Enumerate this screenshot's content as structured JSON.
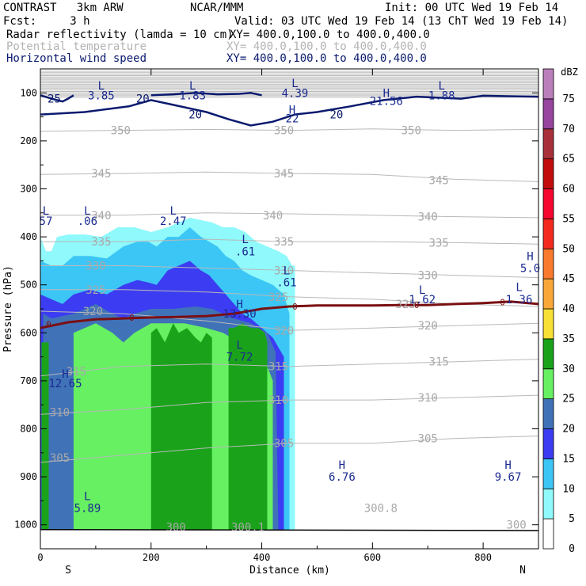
{
  "header": {
    "model": "CONTRAST   3km ARW",
    "org": "NCAR/MMM",
    "init": "Init: 00 UTC Wed 19 Feb 14",
    "fcst": "Fcst:     3 h",
    "valid": "Valid: 03 UTC Wed 19 Feb 14 (13 ChT Wed 19 Feb 14)"
  },
  "legend_lines": [
    {
      "label": "Radar reflectivity (lamda = 10 cm)",
      "xy": "XY= 400.0,100.0 to 400.0,400.0",
      "color": "#000000"
    },
    {
      "label": "Potential temperature",
      "xy": "XY= 400.0,100.0 to 400.0,400.0",
      "color": "#b4b4b4"
    },
    {
      "label": "Horizontal wind speed",
      "xy": "XY= 400.0,100.0 to 400.0,400.0",
      "color": "#0a1a6e"
    }
  ],
  "chart_data": {
    "type": "cross-section",
    "xlabel": "Distance (km)",
    "ylabel": "Pressure (hPa)",
    "xlim": [
      0,
      900
    ],
    "ylim": [
      1050,
      50
    ],
    "x_ticks": [
      0,
      200,
      400,
      600,
      800
    ],
    "y_ticks": [
      100,
      200,
      300,
      400,
      500,
      600,
      700,
      800,
      900,
      1000
    ],
    "end_labels": {
      "left": "S",
      "right": "N"
    },
    "colorbar": {
      "unit": "dBZ",
      "levels": [
        0,
        5,
        10,
        15,
        20,
        25,
        30,
        35,
        40,
        45,
        50,
        55,
        60,
        65,
        70,
        75
      ],
      "colors": [
        "#ffffff",
        "#8ff9fb",
        "#3cc6f6",
        "#3c3cf2",
        "#4072b8",
        "#66f062",
        "#1aa31a",
        "#f8e134",
        "#f9a838",
        "#f97a2c",
        "#f52a1f",
        "#f5062e",
        "#c20c0c",
        "#a8303a",
        "#96449e",
        "#bb80bc"
      ]
    },
    "reflectivity": [
      {
        "level": 5,
        "xs": [
          0,
          10,
          20,
          30,
          50,
          80,
          110,
          140,
          170,
          200,
          230,
          250,
          270,
          290,
          310,
          330,
          350,
          370,
          390,
          410,
          430,
          445,
          455,
          460,
          460,
          0
        ],
        "top_p": [
          400,
          430,
          430,
          400,
          395,
          395,
          400,
          380,
          380,
          390,
          380,
          370,
          360,
          365,
          370,
          380,
          380,
          390,
          410,
          420,
          430,
          440,
          460,
          460,
          1010,
          1010
        ]
      },
      {
        "level": 10,
        "xs": [
          0,
          20,
          40,
          60,
          90,
          120,
          150,
          175,
          195,
          210,
          230,
          250,
          270,
          290,
          305,
          320,
          335,
          350,
          365,
          380,
          400,
          420,
          440,
          450,
          450,
          0
        ],
        "top_p": [
          450,
          460,
          460,
          440,
          440,
          445,
          420,
          410,
          410,
          420,
          400,
          400,
          380,
          400,
          410,
          420,
          440,
          450,
          470,
          480,
          490,
          500,
          520,
          560,
          1010,
          1010
        ]
      },
      {
        "level": 15,
        "xs": [
          0,
          20,
          40,
          60,
          90,
          120,
          150,
          175,
          195,
          210,
          230,
          250,
          270,
          290,
          305,
          320,
          335,
          350,
          365,
          380,
          400,
          420,
          440,
          440,
          0
        ],
        "top_p": [
          520,
          530,
          540,
          520,
          510,
          520,
          500,
          490,
          495,
          500,
          470,
          460,
          450,
          470,
          480,
          500,
          520,
          540,
          560,
          570,
          590,
          610,
          650,
          1010,
          1010
        ]
      },
      {
        "level": 20,
        "xs": [
          5,
          20,
          60,
          100,
          130,
          150,
          170,
          200,
          240,
          280,
          310,
          330,
          350,
          380,
          410,
          425,
          430,
          5
        ],
        "top_p": [
          560,
          570,
          560,
          540,
          560,
          570,
          560,
          550,
          550,
          545,
          550,
          560,
          570,
          580,
          600,
          640,
          1010,
          1010
        ]
      },
      {
        "level": 25,
        "xs": [
          60,
          100,
          130,
          150,
          170,
          200,
          260,
          300,
          330,
          345,
          370,
          400,
          420,
          420,
          60
        ],
        "top_p": [
          600,
          580,
          600,
          620,
          600,
          580,
          580,
          590,
          600,
          610,
          620,
          640,
          700,
          1010,
          1010
        ]
      },
      {
        "level": 30,
        "xs": [
          2,
          15,
          15,
          2
        ],
        "top_p": [
          620,
          620,
          1010,
          1010
        ]
      },
      {
        "level": 30,
        "xs": [
          200,
          210,
          225,
          240,
          250,
          265,
          280,
          290,
          300,
          310,
          310,
          200
        ],
        "top_p": [
          600,
          590,
          620,
          580,
          600,
          590,
          610,
          620,
          600,
          610,
          1010,
          1010
        ]
      },
      {
        "level": 30,
        "xs": [
          340,
          350,
          365,
          380,
          395,
          405,
          410,
          410,
          340
        ],
        "top_p": [
          590,
          590,
          580,
          590,
          590,
          600,
          620,
          1010,
          1010
        ]
      }
    ],
    "theta_labels": [
      {
        "text": "350",
        "x": 145,
        "p": 178
      },
      {
        "text": "350",
        "x": 440,
        "p": 178
      },
      {
        "text": "350",
        "x": 670,
        "p": 178
      },
      {
        "text": "345",
        "x": 110,
        "p": 268
      },
      {
        "text": "345",
        "x": 440,
        "p": 268
      },
      {
        "text": "345",
        "x": 720,
        "p": 282
      },
      {
        "text": "340",
        "x": 110,
        "p": 355
      },
      {
        "text": "340",
        "x": 420,
        "p": 355
      },
      {
        "text": "340",
        "x": 700,
        "p": 358
      },
      {
        "text": "335",
        "x": 110,
        "p": 410
      },
      {
        "text": "335",
        "x": 440,
        "p": 410
      },
      {
        "text": "335",
        "x": 720,
        "p": 412
      },
      {
        "text": "330",
        "x": 100,
        "p": 460
      },
      {
        "text": "330",
        "x": 440,
        "p": 470
      },
      {
        "text": "330",
        "x": 700,
        "p": 480
      },
      {
        "text": "325",
        "x": 100,
        "p": 510
      },
      {
        "text": "325",
        "x": 430,
        "p": 525
      },
      {
        "text": "325",
        "x": 660,
        "p": 540
      },
      {
        "text": "320",
        "x": 95,
        "p": 555
      },
      {
        "text": "320",
        "x": 440,
        "p": 595
      },
      {
        "text": "320",
        "x": 700,
        "p": 585
      },
      {
        "text": "315",
        "x": 65,
        "p": 680
      },
      {
        "text": "315",
        "x": 430,
        "p": 670
      },
      {
        "text": "315",
        "x": 720,
        "p": 660
      },
      {
        "text": "310",
        "x": 35,
        "p": 765
      },
      {
        "text": "310",
        "x": 430,
        "p": 740
      },
      {
        "text": "310",
        "x": 700,
        "p": 735
      },
      {
        "text": "305",
        "x": 35,
        "p": 860
      },
      {
        "text": "305",
        "x": 440,
        "p": 830
      },
      {
        "text": "305",
        "x": 700,
        "p": 820
      },
      {
        "text": "300",
        "x": 245,
        "p": 1005
      },
      {
        "text": "300.1",
        "x": 375,
        "p": 1005
      },
      {
        "text": "300",
        "x": 860,
        "p": 1000
      },
      {
        "text": "300.8",
        "x": 615,
        "p": 965
      }
    ],
    "theta_lines": [
      {
        "xs": [
          0,
          150,
          300,
          450,
          600,
          750,
          900
        ],
        "ps": [
          180,
          178,
          176,
          178,
          175,
          178,
          176
        ]
      },
      {
        "xs": [
          0,
          150,
          300,
          450,
          600,
          750,
          900
        ],
        "ps": [
          270,
          268,
          265,
          268,
          270,
          280,
          285
        ]
      },
      {
        "xs": [
          0,
          150,
          300,
          450,
          600,
          750,
          900
        ],
        "ps": [
          355,
          355,
          350,
          352,
          355,
          358,
          360
        ]
      },
      {
        "xs": [
          0,
          150,
          300,
          450,
          600,
          750,
          900
        ],
        "ps": [
          410,
          410,
          405,
          410,
          410,
          412,
          415
        ]
      },
      {
        "xs": [
          0,
          150,
          300,
          450,
          600,
          750,
          900
        ],
        "ps": [
          460,
          460,
          465,
          470,
          475,
          480,
          485
        ]
      },
      {
        "xs": [
          0,
          150,
          300,
          450,
          600,
          750,
          900
        ],
        "ps": [
          510,
          510,
          515,
          525,
          530,
          540,
          545
        ]
      },
      {
        "xs": [
          0,
          150,
          300,
          450,
          600,
          750,
          900
        ],
        "ps": [
          555,
          560,
          575,
          595,
          590,
          585,
          580
        ]
      },
      {
        "xs": [
          0,
          150,
          300,
          450,
          600,
          750,
          900
        ],
        "ps": [
          690,
          670,
          665,
          670,
          665,
          660,
          655
        ]
      },
      {
        "xs": [
          0,
          150,
          300,
          450,
          600,
          750,
          900
        ],
        "ps": [
          770,
          760,
          745,
          740,
          740,
          735,
          730
        ]
      },
      {
        "xs": [
          0,
          150,
          300,
          450,
          600,
          750,
          900
        ],
        "ps": [
          870,
          855,
          840,
          830,
          830,
          820,
          815
        ]
      }
    ],
    "wind_contours": [
      {
        "value": "25",
        "xs": [
          0,
          20,
          40,
          50,
          60
        ],
        "ps": [
          105,
          112,
          118,
          112,
          105
        ]
      },
      {
        "value": "20",
        "xs": [
          0,
          80,
          160,
          200,
          240,
          300,
          340,
          380,
          420,
          460,
          500,
          560,
          620,
          680,
          720,
          760,
          800,
          900
        ],
        "ps": [
          145,
          140,
          128,
          115,
          125,
          140,
          155,
          168,
          160,
          145,
          140,
          128,
          115,
          108,
          110,
          112,
          106,
          108
        ]
      },
      {
        "value": "20",
        "xs": [
          200,
          240,
          280,
          320,
          360,
          380,
          400
        ],
        "ps": [
          105,
          103,
          100,
          103,
          102,
          100,
          105
        ]
      }
    ],
    "wind_labels": [
      {
        "text": "25",
        "x": 25,
        "p": 112
      },
      {
        "text": "20",
        "x": 185,
        "p": 112
      },
      {
        "text": "20",
        "x": 280,
        "p": 145
      },
      {
        "text": "20",
        "x": 535,
        "p": 145
      }
    ],
    "freezing_line": {
      "label": "0",
      "xs": [
        0,
        50,
        100,
        150,
        200,
        250,
        300,
        350,
        400,
        450,
        500,
        550,
        600,
        650,
        700,
        750,
        800,
        850,
        900
      ],
      "ps": [
        590,
        578,
        572,
        570,
        568,
        567,
        565,
        560,
        550,
        545,
        543,
        543,
        543,
        542,
        542,
        540,
        538,
        535,
        540
      ]
    },
    "freezing_labels": [
      {
        "text": "0",
        "x": 15,
        "p": 582
      },
      {
        "text": "0",
        "x": 165,
        "p": 568
      },
      {
        "text": "0",
        "x": 460,
        "p": 545
      },
      {
        "text": "0",
        "x": 680,
        "p": 542
      },
      {
        "text": "0",
        "x": 835,
        "p": 536
      }
    ],
    "hl_labels": [
      {
        "letter": "L",
        "value": "3.85",
        "x": 110,
        "p": 85,
        "vp": 100
      },
      {
        "letter": "L",
        "value": "1.83",
        "x": 275,
        "p": 85,
        "vp": 100
      },
      {
        "letter": "L",
        "value": "4.39",
        "x": 460,
        "p": 80,
        "vp": 95
      },
      {
        "letter": "H",
        "value": "21.56",
        "x": 625,
        "p": 100,
        "vp": 112
      },
      {
        "letter": "L",
        "value": "1.88",
        "x": 725,
        "p": 85,
        "vp": 100
      },
      {
        "letter": "H",
        "value": "22",
        "x": 455,
        "p": 135,
        "vp": 148
      },
      {
        "letter": "L",
        "value": "57",
        "x": 10,
        "p": 345,
        "vp": 362
      },
      {
        "letter": "L",
        "value": ".06",
        "x": 85,
        "p": 345,
        "vp": 362
      },
      {
        "letter": "L",
        "value": "2.47",
        "x": 240,
        "p": 345,
        "vp": 362
      },
      {
        "letter": "L",
        "value": ".61",
        "x": 370,
        "p": 405,
        "vp": 425
      },
      {
        "letter": "L",
        "value": ".61",
        "x": 445,
        "p": 470,
        "vp": 490
      },
      {
        "letter": "H",
        "value": "5.0",
        "x": 885,
        "p": 440,
        "vp": 460
      },
      {
        "letter": "L",
        "value": "1.62",
        "x": 690,
        "p": 510,
        "vp": 525
      },
      {
        "letter": "L",
        "value": "1.36",
        "x": 865,
        "p": 505,
        "vp": 525
      },
      {
        "letter": "H",
        "value": "13.30",
        "x": 360,
        "p": 540,
        "vp": 555
      },
      {
        "letter": "L",
        "value": "7.72",
        "x": 360,
        "p": 625,
        "vp": 645
      },
      {
        "letter": "H",
        "value": "12.65",
        "x": 45,
        "p": 685,
        "vp": 700
      },
      {
        "letter": "H",
        "value": "6.76",
        "x": 545,
        "p": 875,
        "vp": 895
      },
      {
        "letter": "H",
        "value": "9.67",
        "x": 845,
        "p": 875,
        "vp": 895
      },
      {
        "letter": "L",
        "value": "5.89",
        "x": 85,
        "p": 940,
        "vp": 960
      }
    ]
  }
}
